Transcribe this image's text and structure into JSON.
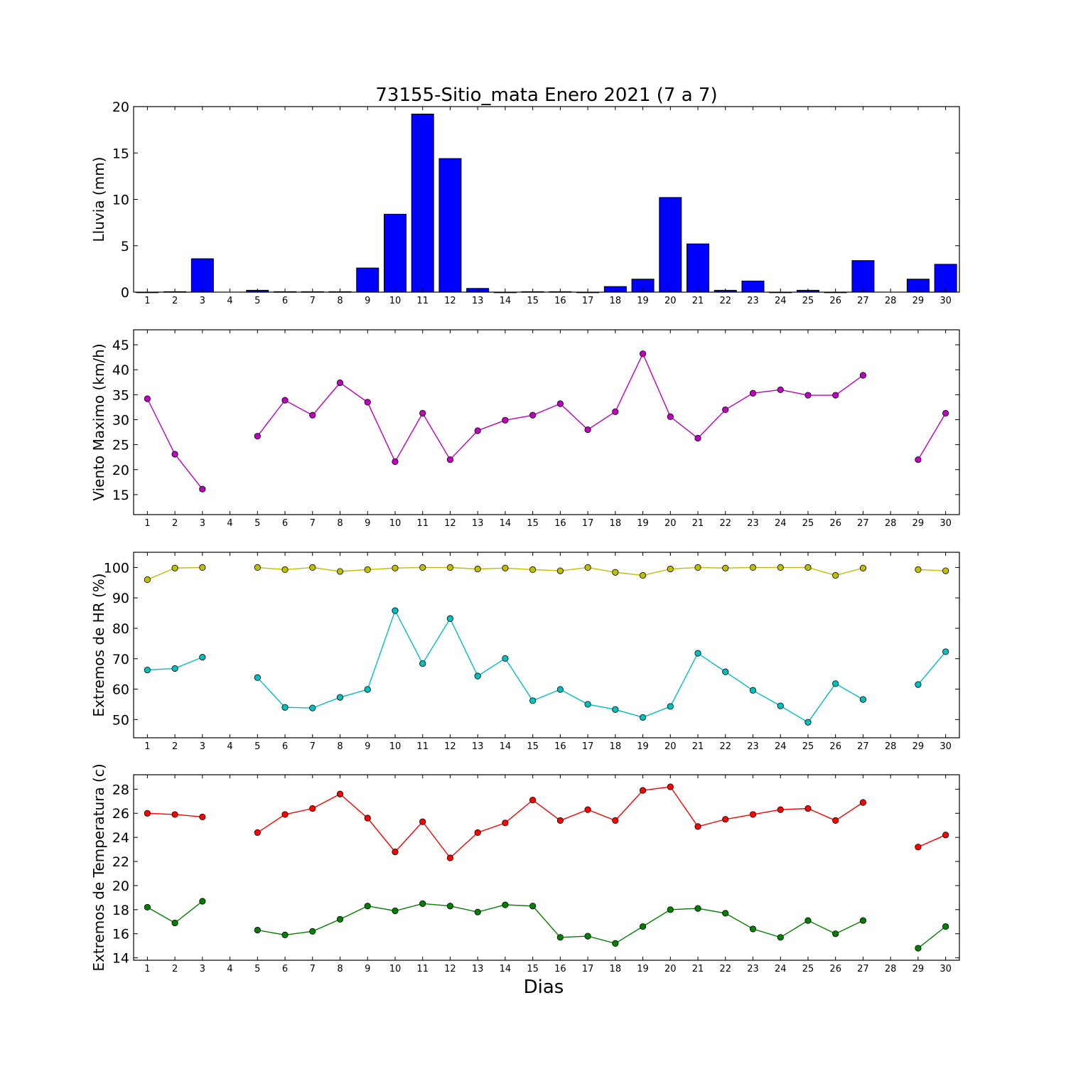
{
  "chart_data": [
    {
      "type": "bar",
      "title": "73155-Sitio_mata Enero 2021  (7 a 7)",
      "ylabel": "Lluvia (mm)",
      "xlim": [
        0.5,
        30.5
      ],
      "ylim": [
        0,
        20
      ],
      "yticks": [
        0,
        5,
        10,
        15,
        20
      ],
      "categories": [
        1,
        2,
        3,
        4,
        5,
        6,
        7,
        8,
        9,
        10,
        11,
        12,
        13,
        14,
        15,
        16,
        17,
        18,
        19,
        20,
        21,
        22,
        23,
        24,
        25,
        26,
        27,
        28,
        29,
        30
      ],
      "values": [
        0,
        0.05,
        3.6,
        null,
        0.2,
        0.05,
        0.05,
        0.05,
        2.6,
        8.4,
        19.2,
        14.4,
        0.4,
        0,
        0.05,
        0.05,
        0,
        0.6,
        1.4,
        10.2,
        5.2,
        0.2,
        1.2,
        0,
        0.2,
        0,
        3.4,
        null,
        1.4,
        3.0
      ],
      "color": "#0000ff",
      "grid": false
    },
    {
      "type": "line",
      "ylabel": "Viento Maximo (km/h)",
      "xlim": [
        0.5,
        30.5
      ],
      "ylim": [
        11,
        48
      ],
      "yticks": [
        15,
        20,
        25,
        30,
        35,
        40,
        45
      ],
      "categories": [
        1,
        2,
        3,
        4,
        5,
        6,
        7,
        8,
        9,
        10,
        11,
        12,
        13,
        14,
        15,
        16,
        17,
        18,
        19,
        20,
        21,
        22,
        23,
        24,
        25,
        26,
        27,
        28,
        29,
        30
      ],
      "series": [
        {
          "color": "#bf00bf",
          "values": [
            34.2,
            23.1,
            16.1,
            null,
            26.7,
            33.9,
            30.9,
            37.4,
            33.5,
            21.6,
            31.3,
            22.0,
            27.8,
            29.9,
            30.9,
            33.2,
            28.0,
            31.6,
            43.2,
            30.6,
            26.3,
            32.0,
            35.3,
            36.0,
            34.9,
            34.9,
            38.9,
            null,
            22.0,
            31.3
          ]
        }
      ],
      "grid": false
    },
    {
      "type": "line",
      "ylabel": "Extremos de HR (%)",
      "xlim": [
        0.5,
        30.5
      ],
      "ylim": [
        44,
        105
      ],
      "yticks": [
        50,
        60,
        70,
        80,
        90,
        100
      ],
      "categories": [
        1,
        2,
        3,
        4,
        5,
        6,
        7,
        8,
        9,
        10,
        11,
        12,
        13,
        14,
        15,
        16,
        17,
        18,
        19,
        20,
        21,
        22,
        23,
        24,
        25,
        26,
        27,
        28,
        29,
        30
      ],
      "series": [
        {
          "color": "#bfbf00",
          "values": [
            96,
            99.8,
            100,
            null,
            100,
            99.3,
            100,
            98.7,
            99.3,
            99.8,
            100,
            100,
            99.5,
            99.8,
            99.3,
            98.9,
            100,
            98.4,
            97.4,
            99.5,
            100,
            99.8,
            100,
            100,
            100,
            97.4,
            99.8,
            null,
            99.3,
            98.9
          ]
        },
        {
          "color": "#00bfbf",
          "values": [
            66.3,
            66.8,
            70.5,
            null,
            63.8,
            54.0,
            53.8,
            57.3,
            59.9,
            85.8,
            68.4,
            83.2,
            64.3,
            70.1,
            56.2,
            59.9,
            55.0,
            53.3,
            50.7,
            54.3,
            71.8,
            65.7,
            59.6,
            54.5,
            49.1,
            61.8,
            56.6,
            null,
            61.5,
            72.3
          ]
        }
      ],
      "grid": false
    },
    {
      "type": "line",
      "ylabel": "Extremos de Temperatura (c)",
      "xlabel": "Dias",
      "xlim": [
        0.5,
        30.5
      ],
      "ylim": [
        13.8,
        29.2
      ],
      "yticks": [
        14,
        16,
        18,
        20,
        22,
        24,
        26,
        28
      ],
      "categories": [
        1,
        2,
        3,
        4,
        5,
        6,
        7,
        8,
        9,
        10,
        11,
        12,
        13,
        14,
        15,
        16,
        17,
        18,
        19,
        20,
        21,
        22,
        23,
        24,
        25,
        26,
        27,
        28,
        29,
        30
      ],
      "series": [
        {
          "color": "#ff0000",
          "values": [
            26.0,
            25.9,
            25.7,
            null,
            24.4,
            25.9,
            26.4,
            27.6,
            25.6,
            22.8,
            25.3,
            22.3,
            24.4,
            25.2,
            27.1,
            25.4,
            26.3,
            25.4,
            27.9,
            28.2,
            24.9,
            25.5,
            25.9,
            26.3,
            26.4,
            25.4,
            26.9,
            null,
            23.2,
            24.2
          ]
        },
        {
          "color": "#007f00",
          "values": [
            18.2,
            16.9,
            18.7,
            null,
            16.3,
            15.9,
            16.2,
            17.2,
            18.3,
            17.9,
            18.5,
            18.3,
            17.8,
            18.4,
            18.3,
            15.7,
            15.8,
            15.2,
            16.6,
            18.0,
            18.1,
            17.7,
            16.4,
            15.7,
            17.1,
            16.0,
            17.1,
            null,
            14.8,
            16.6
          ]
        }
      ],
      "grid": false
    }
  ]
}
